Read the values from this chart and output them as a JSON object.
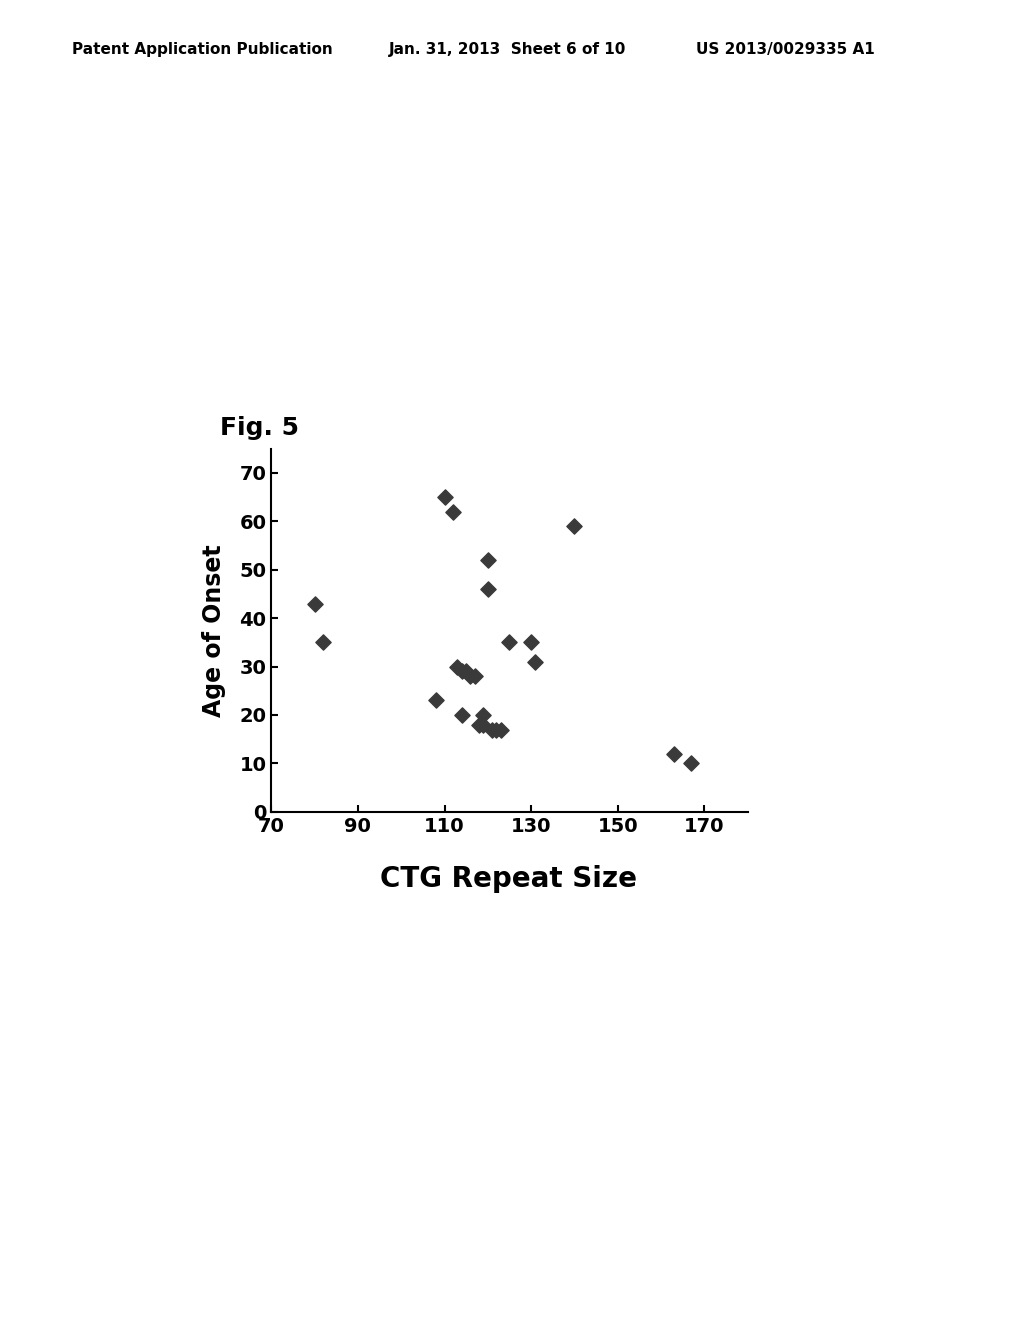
{
  "title": "Fig. 5",
  "xlabel": "CTG Repeat Size",
  "ylabel": "Age of Onset",
  "header_left": "Patent Application Publication",
  "header_center": "Jan. 31, 2013  Sheet 6 of 10",
  "header_right": "US 2013/0029335 A1",
  "xlim": [
    70,
    180
  ],
  "ylim": [
    0,
    75
  ],
  "xticks": [
    70,
    90,
    110,
    130,
    150,
    170
  ],
  "yticks": [
    0,
    10,
    20,
    30,
    40,
    50,
    60,
    70
  ],
  "scatter_x": [
    80,
    82,
    108,
    110,
    112,
    113,
    114,
    114,
    115,
    116,
    117,
    118,
    119,
    119,
    120,
    120,
    121,
    122,
    123,
    125,
    130,
    131,
    140,
    163,
    167
  ],
  "scatter_y": [
    43,
    35,
    23,
    65,
    62,
    30,
    29,
    20,
    29,
    28,
    28,
    18,
    20,
    18,
    52,
    46,
    17,
    17,
    17,
    35,
    35,
    31,
    59,
    12,
    10
  ],
  "background_color": "#ffffff",
  "marker_color": "#3a3a3a",
  "marker_size": 60,
  "title_fontsize": 18,
  "axis_label_fontsize": 17,
  "tick_fontsize": 14,
  "header_fontsize": 11
}
